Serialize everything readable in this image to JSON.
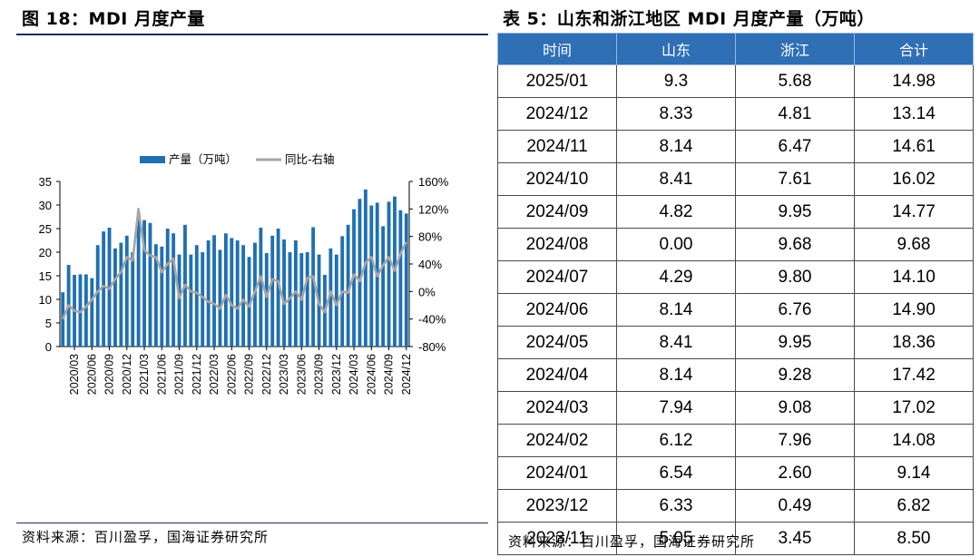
{
  "figure_title": "图 18：MDI 月度产量",
  "table_title": "表 5：山东和浙江地区 MDI 月度产量（万吨）",
  "source_left": "资料来源：百川盈孚，国海证券研究所",
  "source_right": "资料来源：百川盈孚，国海证券研究所",
  "colors": {
    "bar": "#1f6fb2",
    "line": "#a6a6a6",
    "header": "#2f6fb5"
  },
  "chart_data": {
    "type": "bar",
    "legend": {
      "position": "top",
      "bar_label": "产量（万吨）",
      "line_label": "同比-右轴"
    },
    "y_left": {
      "ticks": [
        "0",
        "5",
        "10",
        "15",
        "20",
        "25",
        "30",
        "35"
      ],
      "min": 0,
      "max": 35
    },
    "y_right": {
      "ticks": [
        "-80%",
        "-40%",
        "0%",
        "40%",
        "80%",
        "120%",
        "160%"
      ],
      "min": -80,
      "max": 160
    },
    "x_tick_labels": [
      "2020/03",
      "2020/06",
      "2020/09",
      "2020/12",
      "2021/03",
      "2021/06",
      "2021/09",
      "2021/12",
      "2022/03",
      "2022/06",
      "2022/09",
      "2022/12",
      "2023/03",
      "2023/06",
      "2023/09",
      "2023/12",
      "2024/03",
      "2024/06",
      "2024/09",
      "2024/12"
    ],
    "start_month": "2020/01",
    "series": [
      {
        "name": "产量（万吨）",
        "type": "bar",
        "values": [
          11.5,
          17.3,
          15.2,
          15.3,
          15.3,
          14.5,
          21.5,
          24.4,
          25.2,
          20.8,
          22.0,
          23.5,
          20.0,
          27.8,
          26.8,
          26.2,
          21.7,
          21.2,
          25.0,
          24.0,
          19.5,
          25.8,
          19.5,
          21.5,
          20.0,
          22.5,
          23.6,
          20.5,
          24.0,
          23.0,
          22.5,
          21.5,
          19.0,
          22.0,
          25.2,
          19.8,
          23.5,
          25.0,
          22.7,
          20.0,
          22.5,
          19.8,
          20.0,
          25.3,
          19.5,
          15.2,
          20.8,
          19.5,
          23.4,
          25.8,
          29.1,
          31.3,
          33.3,
          29.9,
          30.5,
          25.5,
          30.7,
          31.8,
          28.9,
          28.2
        ]
      },
      {
        "name": "同比-右轴",
        "type": "line",
        "values": [
          -40,
          -20,
          -28,
          -30,
          -22,
          -12,
          0,
          8,
          4,
          18,
          28,
          50,
          45,
          120,
          60,
          52,
          50,
          28,
          40,
          48,
          -10,
          10,
          0,
          -2,
          -8,
          -15,
          -18,
          -25,
          -5,
          -20,
          -25,
          -12,
          -22,
          0,
          22,
          -8,
          18,
          15,
          -18,
          -10,
          0,
          -12,
          20,
          22,
          -18,
          -30,
          0,
          -20,
          0,
          -2,
          25,
          15,
          42,
          50,
          22,
          38,
          50,
          30,
          55,
          72
        ]
      }
    ]
  },
  "table": {
    "headers": [
      "时间",
      "山东",
      "浙江",
      "合计"
    ],
    "rows": [
      [
        "2025/01",
        "9.3",
        "5.68",
        "14.98"
      ],
      [
        "2024/12",
        "8.33",
        "4.81",
        "13.14"
      ],
      [
        "2024/11",
        "8.14",
        "6.47",
        "14.61"
      ],
      [
        "2024/10",
        "8.41",
        "7.61",
        "16.02"
      ],
      [
        "2024/09",
        "4.82",
        "9.95",
        "14.77"
      ],
      [
        "2024/08",
        "0.00",
        "9.68",
        "9.68"
      ],
      [
        "2024/07",
        "4.29",
        "9.80",
        "14.10"
      ],
      [
        "2024/06",
        "8.14",
        "6.76",
        "14.90"
      ],
      [
        "2024/05",
        "8.41",
        "9.95",
        "18.36"
      ],
      [
        "2024/04",
        "8.14",
        "9.28",
        "17.42"
      ],
      [
        "2024/03",
        "7.94",
        "9.08",
        "17.02"
      ],
      [
        "2024/02",
        "6.12",
        "7.96",
        "14.08"
      ],
      [
        "2024/01",
        "6.54",
        "2.60",
        "9.14"
      ],
      [
        "2023/12",
        "6.33",
        "0.49",
        "6.82"
      ],
      [
        "2023/11",
        "5.05",
        "3.45",
        "8.50"
      ]
    ]
  }
}
